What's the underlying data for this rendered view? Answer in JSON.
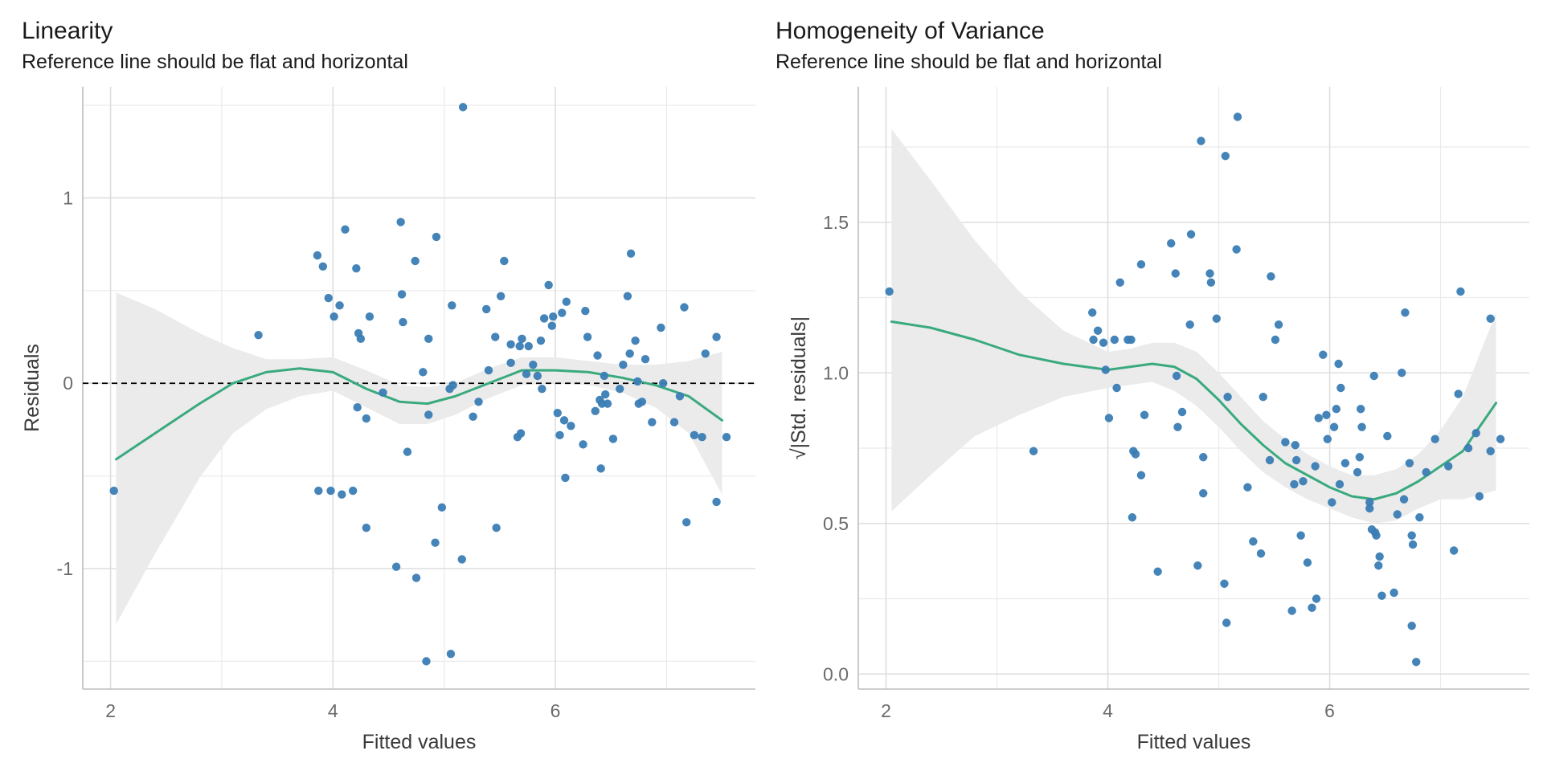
{
  "chart_data": [
    {
      "type": "scatter",
      "title": "Linearity",
      "subtitle": "Reference line should be flat and horizontal",
      "xlabel": "Fitted values",
      "ylabel": "Residuals",
      "xlim": [
        1.75,
        7.8
      ],
      "ylim": [
        -1.65,
        1.6
      ],
      "xticks": [
        2,
        4,
        6
      ],
      "yticks": [
        -1,
        0,
        1
      ],
      "ytick_labels": [
        "-1",
        "0",
        "1"
      ],
      "grid": true,
      "reference_line": {
        "y": 0,
        "style": "dashed",
        "color": "#000000"
      },
      "point_color": "#3A7DB4",
      "smooth_color": "#3AAA7E",
      "band_color": "#EBEBEB",
      "points": [
        [
          2.03,
          -0.58
        ],
        [
          3.33,
          0.26
        ],
        [
          3.86,
          0.69
        ],
        [
          3.91,
          0.63
        ],
        [
          3.96,
          0.46
        ],
        [
          4.01,
          0.36
        ],
        [
          4.06,
          0.42
        ],
        [
          4.11,
          0.83
        ],
        [
          4.21,
          0.62
        ],
        [
          4.23,
          0.27
        ],
        [
          4.25,
          0.24
        ],
        [
          4.33,
          0.36
        ],
        [
          3.87,
          -0.58
        ],
        [
          3.98,
          -0.58
        ],
        [
          4.08,
          -0.6
        ],
        [
          4.18,
          -0.58
        ],
        [
          4.22,
          -0.13
        ],
        [
          4.3,
          -0.19
        ],
        [
          4.3,
          -0.78
        ],
        [
          4.45,
          -0.05
        ],
        [
          4.57,
          -0.99
        ],
        [
          4.61,
          0.87
        ],
        [
          4.62,
          0.48
        ],
        [
          4.63,
          0.33
        ],
        [
          4.67,
          -0.37
        ],
        [
          4.74,
          0.66
        ],
        [
          4.75,
          -1.05
        ],
        [
          4.81,
          0.06
        ],
        [
          4.84,
          -1.5
        ],
        [
          4.86,
          0.24
        ],
        [
          4.86,
          -0.17
        ],
        [
          4.92,
          -0.86
        ],
        [
          4.93,
          0.79
        ],
        [
          4.98,
          -0.67
        ],
        [
          5.05,
          -0.03
        ],
        [
          5.06,
          -1.46
        ],
        [
          5.07,
          0.42
        ],
        [
          5.08,
          -0.01
        ],
        [
          5.16,
          -0.95
        ],
        [
          5.17,
          1.49
        ],
        [
          5.26,
          -0.18
        ],
        [
          5.31,
          -0.1
        ],
        [
          5.38,
          0.4
        ],
        [
          5.4,
          0.07
        ],
        [
          5.46,
          0.25
        ],
        [
          5.47,
          -0.78
        ],
        [
          5.51,
          0.47
        ],
        [
          5.54,
          0.66
        ],
        [
          5.6,
          0.11
        ],
        [
          5.66,
          -0.29
        ],
        [
          5.68,
          0.2
        ],
        [
          5.69,
          -0.27
        ],
        [
          5.7,
          0.24
        ],
        [
          5.74,
          0.05
        ],
        [
          5.76,
          0.2
        ],
        [
          5.8,
          0.1
        ],
        [
          5.84,
          0.04
        ],
        [
          5.87,
          0.23
        ],
        [
          5.88,
          -0.03
        ],
        [
          5.9,
          0.35
        ],
        [
          5.94,
          0.53
        ],
        [
          5.97,
          0.31
        ],
        [
          5.98,
          0.36
        ],
        [
          6.02,
          -0.16
        ],
        [
          6.04,
          -0.28
        ],
        [
          6.06,
          0.38
        ],
        [
          6.08,
          -0.2
        ],
        [
          6.1,
          0.44
        ],
        [
          6.09,
          -0.51
        ],
        [
          6.14,
          -0.23
        ],
        [
          6.25,
          -0.33
        ],
        [
          6.27,
          0.39
        ],
        [
          6.29,
          0.25
        ],
        [
          6.36,
          -0.15
        ],
        [
          6.38,
          0.15
        ],
        [
          6.4,
          -0.09
        ],
        [
          6.41,
          -0.46
        ],
        [
          6.42,
          -0.11
        ],
        [
          6.44,
          0.04
        ],
        [
          6.45,
          -0.06
        ],
        [
          6.47,
          -0.11
        ],
        [
          6.52,
          -0.3
        ],
        [
          6.58,
          -0.03
        ],
        [
          6.61,
          0.1
        ],
        [
          6.65,
          0.47
        ],
        [
          6.67,
          0.16
        ],
        [
          6.68,
          0.7
        ],
        [
          6.72,
          0.23
        ],
        [
          6.74,
          0.01
        ],
        [
          6.75,
          -0.11
        ],
        [
          6.78,
          -0.1
        ],
        [
          6.81,
          0.13
        ],
        [
          6.87,
          -0.21
        ],
        [
          6.95,
          0.3
        ],
        [
          7.07,
          -0.21
        ],
        [
          7.12,
          -0.07
        ],
        [
          7.16,
          0.41
        ],
        [
          7.18,
          -0.75
        ],
        [
          7.25,
          -0.28
        ],
        [
          7.32,
          -0.29
        ],
        [
          7.35,
          0.16
        ],
        [
          7.45,
          0.25
        ],
        [
          7.45,
          -0.64
        ],
        [
          7.54,
          -0.29
        ],
        [
          6.97,
          0.0
        ],
        [
          5.6,
          0.21
        ]
      ],
      "smooth": [
        [
          2.05,
          -0.41
        ],
        [
          2.4,
          -0.27
        ],
        [
          2.8,
          -0.11
        ],
        [
          3.1,
          0.0
        ],
        [
          3.4,
          0.06
        ],
        [
          3.7,
          0.08
        ],
        [
          4.0,
          0.06
        ],
        [
          4.3,
          -0.03
        ],
        [
          4.6,
          -0.1
        ],
        [
          4.85,
          -0.11
        ],
        [
          5.1,
          -0.07
        ],
        [
          5.4,
          0.0
        ],
        [
          5.7,
          0.07
        ],
        [
          6.0,
          0.07
        ],
        [
          6.3,
          0.06
        ],
        [
          6.6,
          0.03
        ],
        [
          6.9,
          -0.01
        ],
        [
          7.2,
          -0.07
        ],
        [
          7.5,
          -0.2
        ]
      ],
      "band_upper": [
        [
          2.05,
          0.49
        ],
        [
          2.4,
          0.4
        ],
        [
          2.8,
          0.27
        ],
        [
          3.1,
          0.19
        ],
        [
          3.4,
          0.13
        ],
        [
          3.7,
          0.13
        ],
        [
          4.0,
          0.14
        ],
        [
          4.3,
          0.07
        ],
        [
          4.6,
          -0.01
        ],
        [
          4.85,
          -0.02
        ],
        [
          5.1,
          0.0
        ],
        [
          5.4,
          0.08
        ],
        [
          5.7,
          0.14
        ],
        [
          6.0,
          0.14
        ],
        [
          6.3,
          0.12
        ],
        [
          6.6,
          0.1
        ],
        [
          6.9,
          0.1
        ],
        [
          7.2,
          0.12
        ],
        [
          7.5,
          0.17
        ]
      ],
      "band_lower": [
        [
          2.05,
          -1.3
        ],
        [
          2.4,
          -0.92
        ],
        [
          2.8,
          -0.51
        ],
        [
          3.1,
          -0.27
        ],
        [
          3.4,
          -0.14
        ],
        [
          3.7,
          -0.07
        ],
        [
          4.0,
          -0.04
        ],
        [
          4.3,
          -0.13
        ],
        [
          4.6,
          -0.22
        ],
        [
          4.85,
          -0.22
        ],
        [
          5.1,
          -0.17
        ],
        [
          5.4,
          -0.08
        ],
        [
          5.7,
          -0.01
        ],
        [
          6.0,
          0.0
        ],
        [
          6.3,
          -0.01
        ],
        [
          6.6,
          -0.05
        ],
        [
          6.9,
          -0.13
        ],
        [
          7.2,
          -0.27
        ],
        [
          7.5,
          -0.6
        ]
      ]
    },
    {
      "type": "scatter",
      "title": "Homogeneity of Variance",
      "subtitle": "Reference line should be flat and horizontal",
      "xlabel": "Fitted values",
      "ylabel": "√|Std. residuals|",
      "xlim": [
        1.75,
        7.8
      ],
      "ylim": [
        -0.05,
        1.95
      ],
      "xticks": [
        2,
        4,
        6
      ],
      "yticks": [
        0.0,
        0.5,
        1.0,
        1.5
      ],
      "ytick_labels": [
        "0.0",
        "0.5",
        "1.0",
        "1.5"
      ],
      "grid": true,
      "point_color": "#3A7DB4",
      "smooth_color": "#3AAA7E",
      "band_color": "#EBEBEB",
      "points": [
        [
          2.03,
          1.27
        ],
        [
          3.33,
          0.74
        ],
        [
          3.86,
          1.2
        ],
        [
          3.87,
          1.11
        ],
        [
          3.91,
          1.14
        ],
        [
          3.96,
          1.1
        ],
        [
          3.98,
          1.01
        ],
        [
          4.01,
          0.85
        ],
        [
          4.06,
          1.11
        ],
        [
          4.08,
          0.95
        ],
        [
          4.11,
          1.3
        ],
        [
          4.18,
          1.11
        ],
        [
          4.21,
          1.11
        ],
        [
          4.22,
          0.52
        ],
        [
          4.23,
          0.74
        ],
        [
          4.25,
          0.73
        ],
        [
          4.3,
          0.66
        ],
        [
          4.3,
          1.36
        ],
        [
          4.33,
          0.86
        ],
        [
          4.45,
          0.34
        ],
        [
          4.57,
          1.43
        ],
        [
          4.61,
          1.33
        ],
        [
          4.62,
          0.99
        ],
        [
          4.63,
          0.82
        ],
        [
          4.67,
          0.87
        ],
        [
          4.74,
          1.16
        ],
        [
          4.75,
          1.46
        ],
        [
          4.81,
          0.36
        ],
        [
          4.84,
          1.77
        ],
        [
          4.86,
          0.6
        ],
        [
          4.86,
          0.72
        ],
        [
          4.92,
          1.33
        ],
        [
          4.93,
          1.3
        ],
        [
          4.98,
          1.18
        ],
        [
          5.05,
          0.3
        ],
        [
          5.06,
          1.72
        ],
        [
          5.07,
          0.17
        ],
        [
          5.08,
          0.92
        ],
        [
          5.16,
          1.41
        ],
        [
          5.17,
          1.85
        ],
        [
          5.26,
          0.62
        ],
        [
          5.31,
          0.44
        ],
        [
          5.38,
          0.4
        ],
        [
          5.4,
          0.92
        ],
        [
          5.46,
          0.71
        ],
        [
          5.47,
          1.32
        ],
        [
          5.51,
          1.11
        ],
        [
          5.54,
          1.16
        ],
        [
          5.6,
          0.77
        ],
        [
          5.66,
          0.21
        ],
        [
          5.68,
          0.63
        ],
        [
          5.69,
          0.76
        ],
        [
          5.7,
          0.71
        ],
        [
          5.74,
          0.46
        ],
        [
          5.76,
          0.64
        ],
        [
          5.8,
          0.37
        ],
        [
          5.84,
          0.22
        ],
        [
          5.87,
          0.69
        ],
        [
          5.88,
          0.25
        ],
        [
          5.9,
          0.85
        ],
        [
          5.94,
          1.06
        ],
        [
          5.97,
          0.86
        ],
        [
          5.98,
          0.78
        ],
        [
          6.02,
          0.57
        ],
        [
          6.04,
          0.82
        ],
        [
          6.06,
          0.88
        ],
        [
          6.08,
          1.03
        ],
        [
          6.09,
          0.63
        ],
        [
          6.1,
          0.95
        ],
        [
          6.14,
          0.7
        ],
        [
          6.25,
          0.67
        ],
        [
          6.27,
          0.72
        ],
        [
          6.28,
          0.88
        ],
        [
          6.29,
          0.82
        ],
        [
          6.36,
          0.55
        ],
        [
          6.38,
          0.48
        ],
        [
          6.4,
          0.99
        ],
        [
          6.41,
          0.47
        ],
        [
          6.42,
          0.46
        ],
        [
          6.44,
          0.36
        ],
        [
          6.45,
          0.39
        ],
        [
          6.47,
          0.26
        ],
        [
          6.52,
          0.79
        ],
        [
          6.58,
          0.27
        ],
        [
          6.61,
          0.53
        ],
        [
          6.65,
          1.0
        ],
        [
          6.67,
          0.58
        ],
        [
          6.68,
          1.2
        ],
        [
          6.72,
          0.7
        ],
        [
          6.74,
          0.46
        ],
        [
          6.75,
          0.43
        ],
        [
          6.78,
          0.04
        ],
        [
          6.81,
          0.52
        ],
        [
          6.87,
          0.67
        ],
        [
          6.95,
          0.78
        ],
        [
          7.07,
          0.69
        ],
        [
          7.12,
          0.41
        ],
        [
          7.16,
          0.93
        ],
        [
          7.18,
          1.27
        ],
        [
          7.25,
          0.75
        ],
        [
          7.32,
          0.8
        ],
        [
          7.35,
          0.59
        ],
        [
          7.45,
          0.74
        ],
        [
          7.45,
          1.18
        ],
        [
          7.54,
          0.78
        ],
        [
          6.36,
          0.57
        ],
        [
          6.74,
          0.16
        ]
      ],
      "smooth": [
        [
          2.05,
          1.17
        ],
        [
          2.4,
          1.15
        ],
        [
          2.8,
          1.11
        ],
        [
          3.2,
          1.06
        ],
        [
          3.6,
          1.03
        ],
        [
          4.0,
          1.01
        ],
        [
          4.2,
          1.02
        ],
        [
          4.4,
          1.03
        ],
        [
          4.6,
          1.02
        ],
        [
          4.8,
          0.98
        ],
        [
          5.0,
          0.91
        ],
        [
          5.2,
          0.83
        ],
        [
          5.4,
          0.76
        ],
        [
          5.6,
          0.7
        ],
        [
          5.8,
          0.66
        ],
        [
          6.0,
          0.62
        ],
        [
          6.2,
          0.59
        ],
        [
          6.4,
          0.58
        ],
        [
          6.6,
          0.6
        ],
        [
          6.8,
          0.64
        ],
        [
          7.0,
          0.69
        ],
        [
          7.2,
          0.74
        ],
        [
          7.5,
          0.9
        ]
      ],
      "band_upper": [
        [
          2.05,
          1.81
        ],
        [
          2.4,
          1.64
        ],
        [
          2.8,
          1.44
        ],
        [
          3.2,
          1.27
        ],
        [
          3.6,
          1.14
        ],
        [
          4.0,
          1.07
        ],
        [
          4.2,
          1.08
        ],
        [
          4.4,
          1.1
        ],
        [
          4.6,
          1.1
        ],
        [
          4.8,
          1.07
        ],
        [
          5.0,
          1.0
        ],
        [
          5.2,
          0.92
        ],
        [
          5.4,
          0.84
        ],
        [
          5.6,
          0.78
        ],
        [
          5.8,
          0.73
        ],
        [
          6.0,
          0.69
        ],
        [
          6.2,
          0.66
        ],
        [
          6.4,
          0.66
        ],
        [
          6.6,
          0.68
        ],
        [
          6.8,
          0.73
        ],
        [
          7.0,
          0.81
        ],
        [
          7.2,
          0.92
        ],
        [
          7.5,
          1.2
        ]
      ],
      "band_lower": [
        [
          2.05,
          0.54
        ],
        [
          2.4,
          0.66
        ],
        [
          2.8,
          0.79
        ],
        [
          3.2,
          0.86
        ],
        [
          3.6,
          0.92
        ],
        [
          4.0,
          0.95
        ],
        [
          4.2,
          0.96
        ],
        [
          4.4,
          0.97
        ],
        [
          4.6,
          0.94
        ],
        [
          4.8,
          0.89
        ],
        [
          5.0,
          0.82
        ],
        [
          5.2,
          0.74
        ],
        [
          5.4,
          0.67
        ],
        [
          5.6,
          0.62
        ],
        [
          5.8,
          0.58
        ],
        [
          6.0,
          0.55
        ],
        [
          6.2,
          0.52
        ],
        [
          6.4,
          0.5
        ],
        [
          6.6,
          0.51
        ],
        [
          6.8,
          0.55
        ],
        [
          7.0,
          0.58
        ],
        [
          7.2,
          0.58
        ],
        [
          7.5,
          0.61
        ]
      ]
    }
  ]
}
